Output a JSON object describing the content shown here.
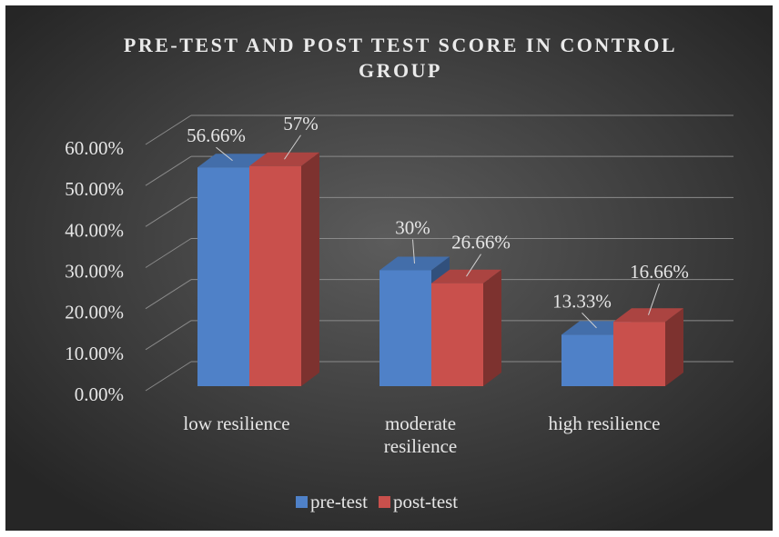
{
  "chart_data": {
    "type": "bar3d",
    "title": "PRE-TEST AND POST TEST SCORE IN CONTROL GROUP",
    "categories": [
      "low resilience",
      "moderate resilience",
      "high resilience"
    ],
    "series": [
      {
        "name": "pre-test",
        "color": "#4f81c8",
        "values": [
          56.66,
          30,
          13.33
        ],
        "value_labels": [
          "56.66%",
          "30%",
          "13.33%"
        ]
      },
      {
        "name": "post-test",
        "color": "#c9504c",
        "values": [
          57,
          26.66,
          16.66
        ],
        "value_labels": [
          "57%",
          "26.66%",
          "16.66%"
        ]
      }
    ],
    "ylim": [
      0,
      60
    ],
    "yticks": [
      {
        "value": 0,
        "label": "0.00%"
      },
      {
        "value": 10,
        "label": "10.00%"
      },
      {
        "value": 20,
        "label": "20.00%"
      },
      {
        "value": 30,
        "label": "30.00%"
      },
      {
        "value": 40,
        "label": "40.00%"
      },
      {
        "value": 50,
        "label": "50.00%"
      },
      {
        "value": 60,
        "label": "60.00%"
      }
    ],
    "grid": true,
    "legend": "bottom"
  }
}
